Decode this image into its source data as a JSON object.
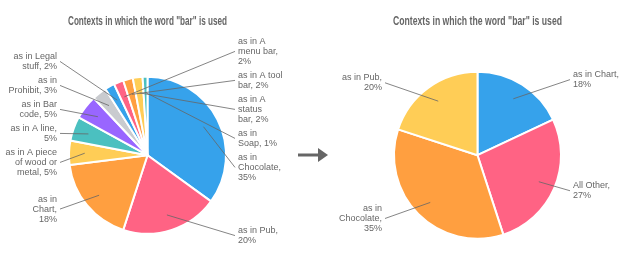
{
  "chart_data": [
    {
      "type": "pie",
      "title": "Contexts in which the word \"bar\" is used",
      "categories": [
        "as in\nChocolate,\n35%",
        "as in Pub,\n20%",
        "as in\nChart,\n18%",
        "as in A piece\nof wood or\nmetal, 5%",
        "as in A line,\n5%",
        "as in Bar\ncode, 5%",
        "as in\nProhibit, 3%",
        "as in Legal\nstuff, 2%",
        "as in A\nmenu bar,\n2%",
        "as in A tool\nbar, 2%",
        "as in A\nstatus\nbar, 2%",
        "as in\nSoap, 1%"
      ],
      "values": [
        35,
        20,
        18,
        5,
        5,
        5,
        3,
        2,
        2,
        2,
        2,
        1
      ]
    },
    {
      "type": "pie",
      "title": "Contexts in which the word \"bar\" is used",
      "categories": [
        "as in Chart,\n18%",
        "All Other,\n27%",
        "as in\nChocolate,\n35%",
        "as in Pub,\n20%"
      ],
      "values": [
        18,
        27,
        35,
        20
      ]
    }
  ]
}
